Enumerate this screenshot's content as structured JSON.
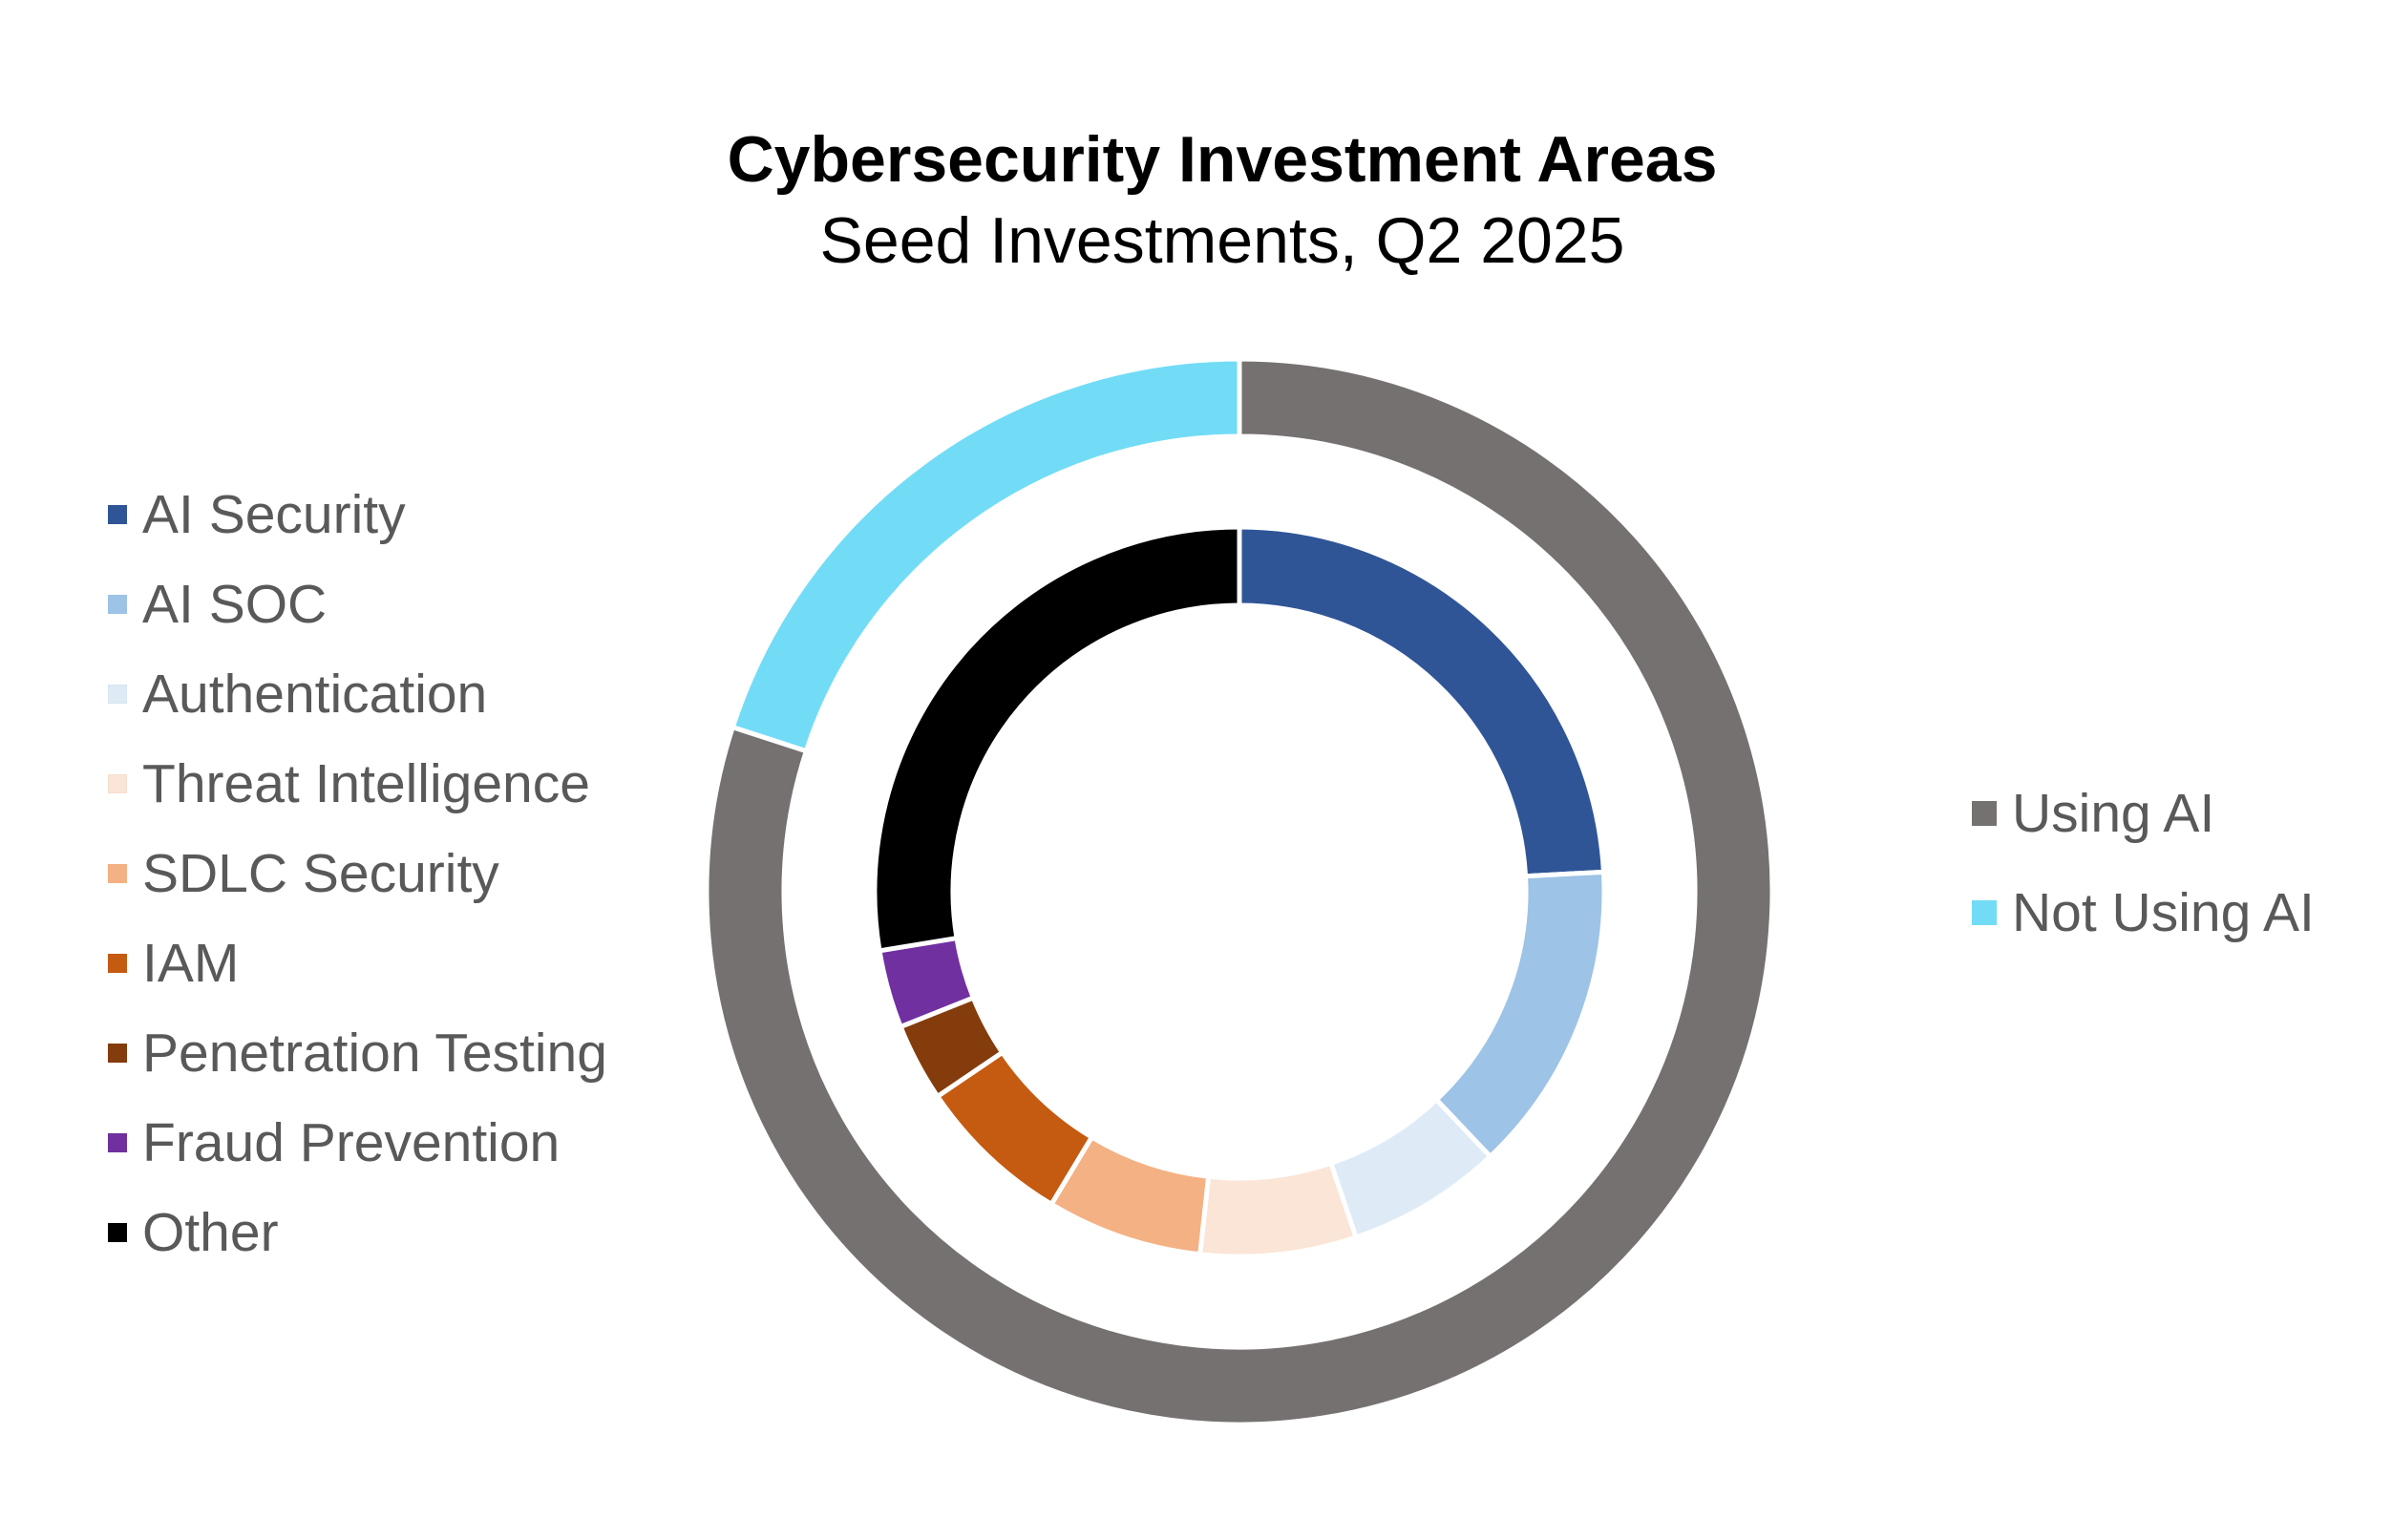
{
  "chart_data": {
    "type": "donut",
    "title": "Cybersecurity Investment Areas",
    "subtitle": "Seed Investments, Q2 2025",
    "outer_ring": {
      "categories": [
        "Using AI",
        "Not Using AI"
      ],
      "values": [
        80,
        20
      ],
      "colors": [
        "#767171",
        "#72DCF6"
      ],
      "start_category": "Using AI",
      "legend_position": "right"
    },
    "inner_ring": {
      "categories": [
        "AI Security",
        "AI SOC",
        "Authentication",
        "Threat Intelligence",
        "SDLC Security",
        "IAM",
        "Penetration Testing",
        "Fraud Prevention",
        "Other"
      ],
      "values": [
        21,
        12,
        6,
        6,
        6,
        6,
        3,
        3,
        24
      ],
      "colors": [
        "#2F5597",
        "#9DC3E6",
        "#DEEBF7",
        "#FBE5D6",
        "#F4B183",
        "#C55A11",
        "#843C0C",
        "#7030A0",
        "#000000"
      ],
      "legend_position": "left"
    }
  }
}
